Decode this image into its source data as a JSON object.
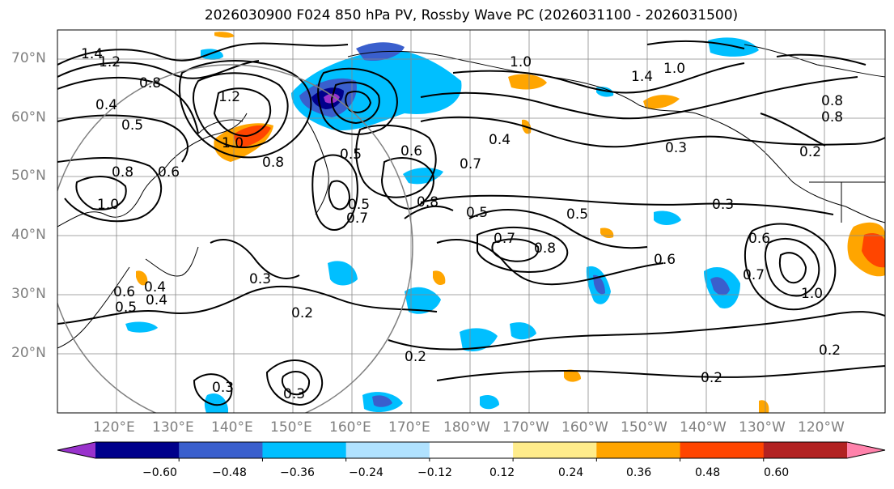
{
  "title": "2026030900 F024 850 hPa PV, Rossby Wave PC (2026031100 - 2026031500)",
  "map": {
    "lat_labels": [
      "70°N",
      "60°N",
      "50°N",
      "40°N",
      "30°N",
      "20°N"
    ],
    "lon_labels": [
      "120°E",
      "130°E",
      "140°E",
      "150°E",
      "160°E",
      "170°E",
      "180°W",
      "170°W",
      "160°W",
      "150°W",
      "140°W",
      "130°W",
      "120°W"
    ],
    "contour_labels": [
      "1.4",
      "1.2",
      "0.8",
      "0.4",
      "0.5",
      "0.8",
      "1.0",
      "0.6",
      "1.2",
      "1.0",
      "0.8",
      "0.5",
      "0.6",
      "0.7",
      "0.4",
      "0.7",
      "0.8",
      "0.5",
      "0.5",
      "0.3",
      "0.3",
      "0.7",
      "0.8",
      "0.6",
      "0.6",
      "0.7",
      "1.0",
      "0.2",
      "0.2",
      "0.2",
      "0.3",
      "0.4",
      "0.3",
      "0.6",
      "0.2",
      "1.0",
      "0.8",
      "0.3",
      "1.4",
      "1.0",
      "0.8",
      "0.5",
      "0.4",
      "0.5",
      "0.2"
    ]
  },
  "colorbar": {
    "colors": [
      "#9932cc",
      "#00008b",
      "#3a5fcd",
      "#00bfff",
      "#b0e2ff",
      "#ffffff",
      "#ffec8b",
      "#ffa500",
      "#ff4500",
      "#b22222",
      "#ff82ab"
    ],
    "tick_labels": [
      "−0.60",
      "−0.48",
      "−0.36",
      "−0.24",
      "−0.12",
      "0.12",
      "0.24",
      "0.36",
      "0.48",
      "0.60"
    ]
  }
}
